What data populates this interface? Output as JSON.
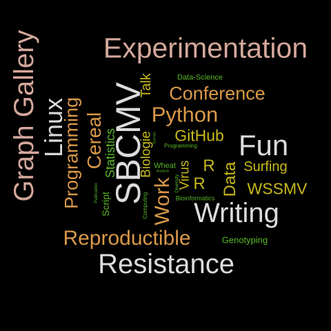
{
  "colors": {
    "background": "#000000",
    "pink": "#d4a89c",
    "light": "#dcdcdc",
    "orange": "#d9994a",
    "yellow": "#c8b91e",
    "green": "#5ab82a"
  },
  "words": [
    {
      "text": "Experimentation",
      "color": "#d4a89c"
    },
    {
      "text": "Graph Gallery",
      "color": "#d4a89c"
    },
    {
      "text": "Linux",
      "color": "#dcdcdc"
    },
    {
      "text": "SBCMV",
      "color": "#dcdcdc"
    },
    {
      "text": "Fun",
      "color": "#dcdcdc"
    },
    {
      "text": "Writing",
      "color": "#dcdcdc"
    },
    {
      "text": "Resistance",
      "color": "#dcdcdc"
    },
    {
      "text": "Conference",
      "color": "#d9994a"
    },
    {
      "text": "Python",
      "color": "#d9994a"
    },
    {
      "text": "Programming",
      "color": "#d9994a"
    },
    {
      "text": "Cereal",
      "color": "#d9994a"
    },
    {
      "text": "Reproductible",
      "color": "#d9994a"
    },
    {
      "text": "Work",
      "color": "#d9994a"
    },
    {
      "text": "Talk",
      "color": "#c8b91e"
    },
    {
      "text": "GitHub",
      "color": "#c8b91e"
    },
    {
      "text": "Data",
      "color": "#c8b91e"
    },
    {
      "text": "R",
      "color": "#c8b91e"
    },
    {
      "text": "R",
      "color": "#c8b91e"
    },
    {
      "text": "Surfing",
      "color": "#c8b91e"
    },
    {
      "text": "WSSMV",
      "color": "#c8b91e"
    },
    {
      "text": "Biologie",
      "color": "#c8b91e"
    },
    {
      "text": "Virus",
      "color": "#c8b91e"
    },
    {
      "text": "Statistics",
      "color": "#5ab82a"
    },
    {
      "text": "Script",
      "color": "#5ab82a"
    },
    {
      "text": "Data-Science",
      "color": "#5ab82a"
    },
    {
      "text": "Programming",
      "color": "#5ab82a"
    },
    {
      "text": "Wheat",
      "color": "#5ab82a"
    },
    {
      "text": "Genotyping",
      "color": "#5ab82a"
    },
    {
      "text": "Bioinformatics",
      "color": "#5ab82a"
    },
    {
      "text": "Computing",
      "color": "#5ab82a"
    },
    {
      "text": "Publication",
      "color": "#5ab82a"
    },
    {
      "text": "Science",
      "color": "#5ab82a"
    },
    {
      "text": "Analysis",
      "color": "#5ab82a"
    },
    {
      "text": "Diversity",
      "color": "#5ab82a"
    }
  ]
}
